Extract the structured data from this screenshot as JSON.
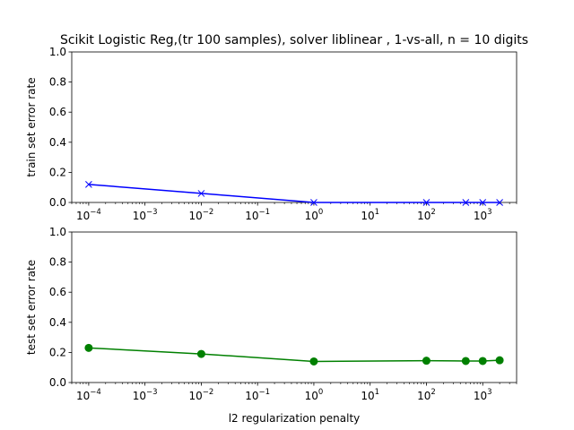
{
  "chart_data": [
    {
      "type": "line",
      "title": "Scikit Logistic Reg,(tr 100 samples), solver liblinear , 1-vs-all, n = 10 digits",
      "xlabel": "",
      "ylabel": "train set error rate",
      "xscale": "log",
      "xlim": [
        5e-05,
        4000
      ],
      "ylim": [
        0,
        1
      ],
      "yticks": [
        "0.0",
        "0.2",
        "0.4",
        "0.6",
        "0.8",
        "1.0"
      ],
      "xtick_exponents": [
        "-4",
        "-3",
        "-2",
        "-1",
        "0",
        "1",
        "2",
        "3"
      ],
      "grid": false,
      "series": [
        {
          "color": "#0000ff",
          "marker": "x",
          "x": [
            0.0001,
            0.01,
            1,
            100,
            500,
            1000,
            2000
          ],
          "y": [
            0.12,
            0.06,
            0.0,
            0.0,
            0.0,
            0.0,
            0.0
          ]
        }
      ]
    },
    {
      "type": "line",
      "title": "",
      "xlabel": "l2 regularization penalty",
      "ylabel": "test set error rate",
      "xscale": "log",
      "xlim": [
        5e-05,
        4000
      ],
      "ylim": [
        0,
        1
      ],
      "yticks": [
        "0.0",
        "0.2",
        "0.4",
        "0.6",
        "0.8",
        "1.0"
      ],
      "xtick_exponents": [
        "-4",
        "-3",
        "-2",
        "-1",
        "0",
        "1",
        "2",
        "3"
      ],
      "grid": false,
      "series": [
        {
          "color": "#008000",
          "marker": "o",
          "x": [
            0.0001,
            0.01,
            1,
            100,
            500,
            1000,
            2000
          ],
          "y": [
            0.23,
            0.19,
            0.14,
            0.145,
            0.143,
            0.143,
            0.148
          ]
        }
      ]
    }
  ]
}
